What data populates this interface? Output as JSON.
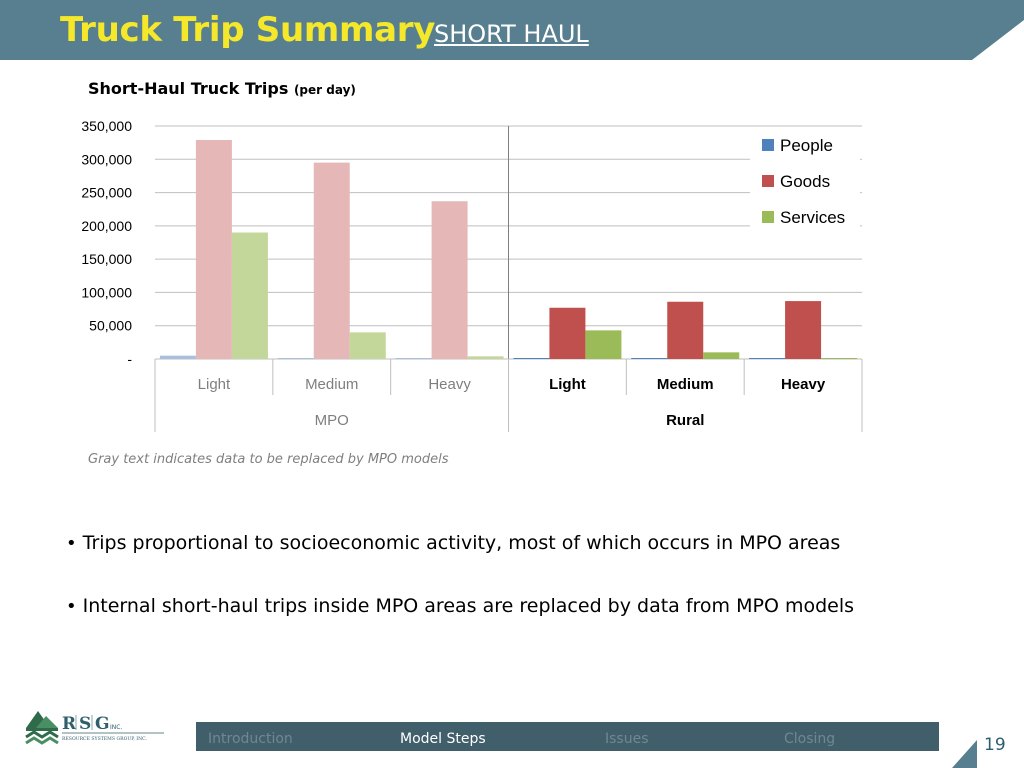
{
  "header": {
    "title": "Truck Trip Summary",
    "subtitle": "SHORT HAUL"
  },
  "chart_title": {
    "main": "Short-Haul Truck Trips ",
    "unit": "(per day)"
  },
  "chart_data": {
    "type": "bar",
    "title": "Short-Haul Truck Trips (per day)",
    "categories": [
      "Light",
      "Medium",
      "Heavy",
      "Light",
      "Medium",
      "Heavy"
    ],
    "groups": [
      {
        "label": "MPO",
        "categories": [
          "Light",
          "Medium",
          "Heavy"
        ]
      },
      {
        "label": "Rural",
        "categories": [
          "Light",
          "Medium",
          "Heavy"
        ]
      }
    ],
    "series": [
      {
        "name": "People",
        "color": "#4f81bd",
        "values": [
          5000,
          1000,
          0,
          1000,
          1000,
          0
        ]
      },
      {
        "name": "Goods",
        "color": "#c0504d",
        "values": [
          329000,
          295000,
          237000,
          77000,
          86000,
          87000
        ]
      },
      {
        "name": "Services",
        "color": "#9bbb59",
        "values": [
          190000,
          40000,
          4000,
          43000,
          10000,
          1000
        ]
      }
    ],
    "faded_colors": {
      "People": "#a8c0de",
      "Goods": "#e5b8b7",
      "Services": "#c4d79b"
    },
    "ylim": [
      0,
      350000
    ],
    "yticks": [
      0,
      50000,
      100000,
      150000,
      200000,
      250000,
      300000,
      350000
    ],
    "ytick_labels": [
      "-",
      "50,000",
      "100,000",
      "150,000",
      "200,000",
      "250,000",
      "300,000",
      "350,000"
    ],
    "grid": true,
    "legend": "top-right",
    "note": "Gray text indicates data to be replaced by MPO models"
  },
  "bullets": [
    "Trips proportional to socioeconomic activity, most of which occurs in MPO areas",
    "Internal short-haul trips inside MPO areas are replaced by data from MPO models"
  ],
  "logo": {
    "letters": [
      "R",
      "S",
      "G"
    ],
    "suffix": "INC.",
    "tagline": "RESOURCE SYSTEMS GROUP, INC."
  },
  "nav": {
    "items": [
      {
        "label": "Introduction",
        "active": false
      },
      {
        "label": "Model Steps",
        "active": true
      },
      {
        "label": "Issues",
        "active": false
      },
      {
        "label": "Closing",
        "active": false
      }
    ]
  },
  "page_number": "19"
}
